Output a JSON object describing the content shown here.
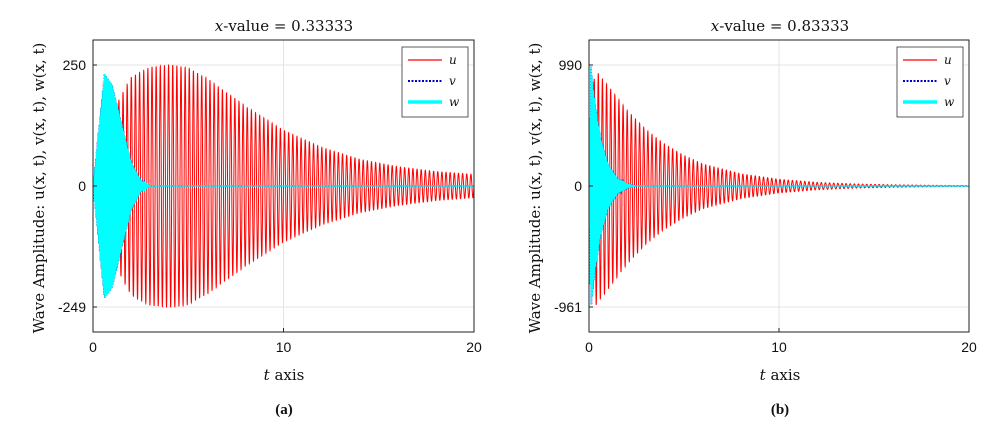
{
  "chart_data": [
    {
      "type": "line",
      "id": "a",
      "title": "x-value = 0.33333",
      "title_italic_prefix": "x",
      "title_rest": "-value = 0.33333",
      "xlabel_italic": "t",
      "xlabel_rest": " axis",
      "ylabel": "Wave Amplitude:  u(x, t), v(x, t), w(x, t)",
      "xlim": [
        0,
        20
      ],
      "ylim": [
        -249,
        250
      ],
      "xticks": [
        "0",
        "10",
        "20"
      ],
      "yticks": [
        "250",
        "0",
        "-249"
      ],
      "ytick_values": [
        250,
        0,
        -249
      ],
      "caption": "(a)",
      "grid": true,
      "legend_position": "top-right",
      "series": [
        {
          "name": "u",
          "style": "solid",
          "color": "#ff0000",
          "envelope": [
            [
              0,
              0
            ],
            [
              1,
              150
            ],
            [
              2,
              225
            ],
            [
              3,
              246
            ],
            [
              4.2,
              250
            ],
            [
              5,
              244
            ],
            [
              6,
              222
            ],
            [
              8,
              165
            ],
            [
              10,
              115
            ],
            [
              12,
              80
            ],
            [
              14,
              55
            ],
            [
              16,
              40
            ],
            [
              18,
              30
            ],
            [
              20,
              24
            ]
          ]
        },
        {
          "name": "v",
          "style": "dotted",
          "color": "#0000cc",
          "envelope": [
            [
              0,
              0
            ],
            [
              0.6,
              232
            ],
            [
              1,
              210
            ],
            [
              1.5,
              130
            ],
            [
              2,
              50
            ],
            [
              2.5,
              12
            ],
            [
              3,
              0
            ],
            [
              20,
              0
            ]
          ]
        },
        {
          "name": "w",
          "style": "solid-thick",
          "color": "#00ffff",
          "envelope": [
            [
              0,
              0
            ],
            [
              0.6,
              232
            ],
            [
              1,
              210
            ],
            [
              1.5,
              130
            ],
            [
              2,
              50
            ],
            [
              2.5,
              12
            ],
            [
              3,
              0
            ],
            [
              20,
              0
            ]
          ]
        }
      ]
    },
    {
      "type": "line",
      "id": "b",
      "title": "x-value = 0.83333",
      "title_italic_prefix": "x",
      "title_rest": "-value = 0.83333",
      "xlabel_italic": "t",
      "xlabel_rest": " axis",
      "ylabel": "Wave Amplitude:  u(x, t), v(x, t), w(x, t)",
      "xlim": [
        0,
        20
      ],
      "ylim": [
        -961,
        990
      ],
      "xticks": [
        "0",
        "10",
        "20"
      ],
      "yticks": [
        "990",
        "0",
        "-961"
      ],
      "ytick_values": [
        990,
        0,
        -961
      ],
      "caption": "(b)",
      "grid": true,
      "legend_position": "top-right",
      "series": [
        {
          "name": "u",
          "style": "solid",
          "color": "#ff0000",
          "envelope": [
            [
              0,
              0
            ],
            [
              0.3,
              960
            ],
            [
              1,
              820
            ],
            [
              2,
              620
            ],
            [
              3,
              460
            ],
            [
              4,
              340
            ],
            [
              5,
              250
            ],
            [
              6,
              180
            ],
            [
              8,
              100
            ],
            [
              10,
              55
            ],
            [
              12,
              30
            ],
            [
              14,
              17
            ],
            [
              16,
              10
            ],
            [
              18,
              6
            ],
            [
              20,
              4
            ]
          ]
        },
        {
          "name": "v",
          "style": "dotted",
          "color": "#0000cc",
          "envelope": [
            [
              0,
              0
            ],
            [
              0.1,
              980
            ],
            [
              0.3,
              700
            ],
            [
              0.6,
              400
            ],
            [
              1,
              180
            ],
            [
              1.5,
              60
            ],
            [
              2,
              15
            ],
            [
              2.5,
              0
            ],
            [
              20,
              0
            ]
          ]
        },
        {
          "name": "w",
          "style": "solid-thick",
          "color": "#00ffff",
          "envelope": [
            [
              0,
              0
            ],
            [
              0.1,
              980
            ],
            [
              0.3,
              700
            ],
            [
              0.6,
              400
            ],
            [
              1,
              180
            ],
            [
              1.5,
              60
            ],
            [
              2,
              15
            ],
            [
              2.5,
              0
            ],
            [
              20,
              0
            ]
          ]
        }
      ]
    }
  ]
}
